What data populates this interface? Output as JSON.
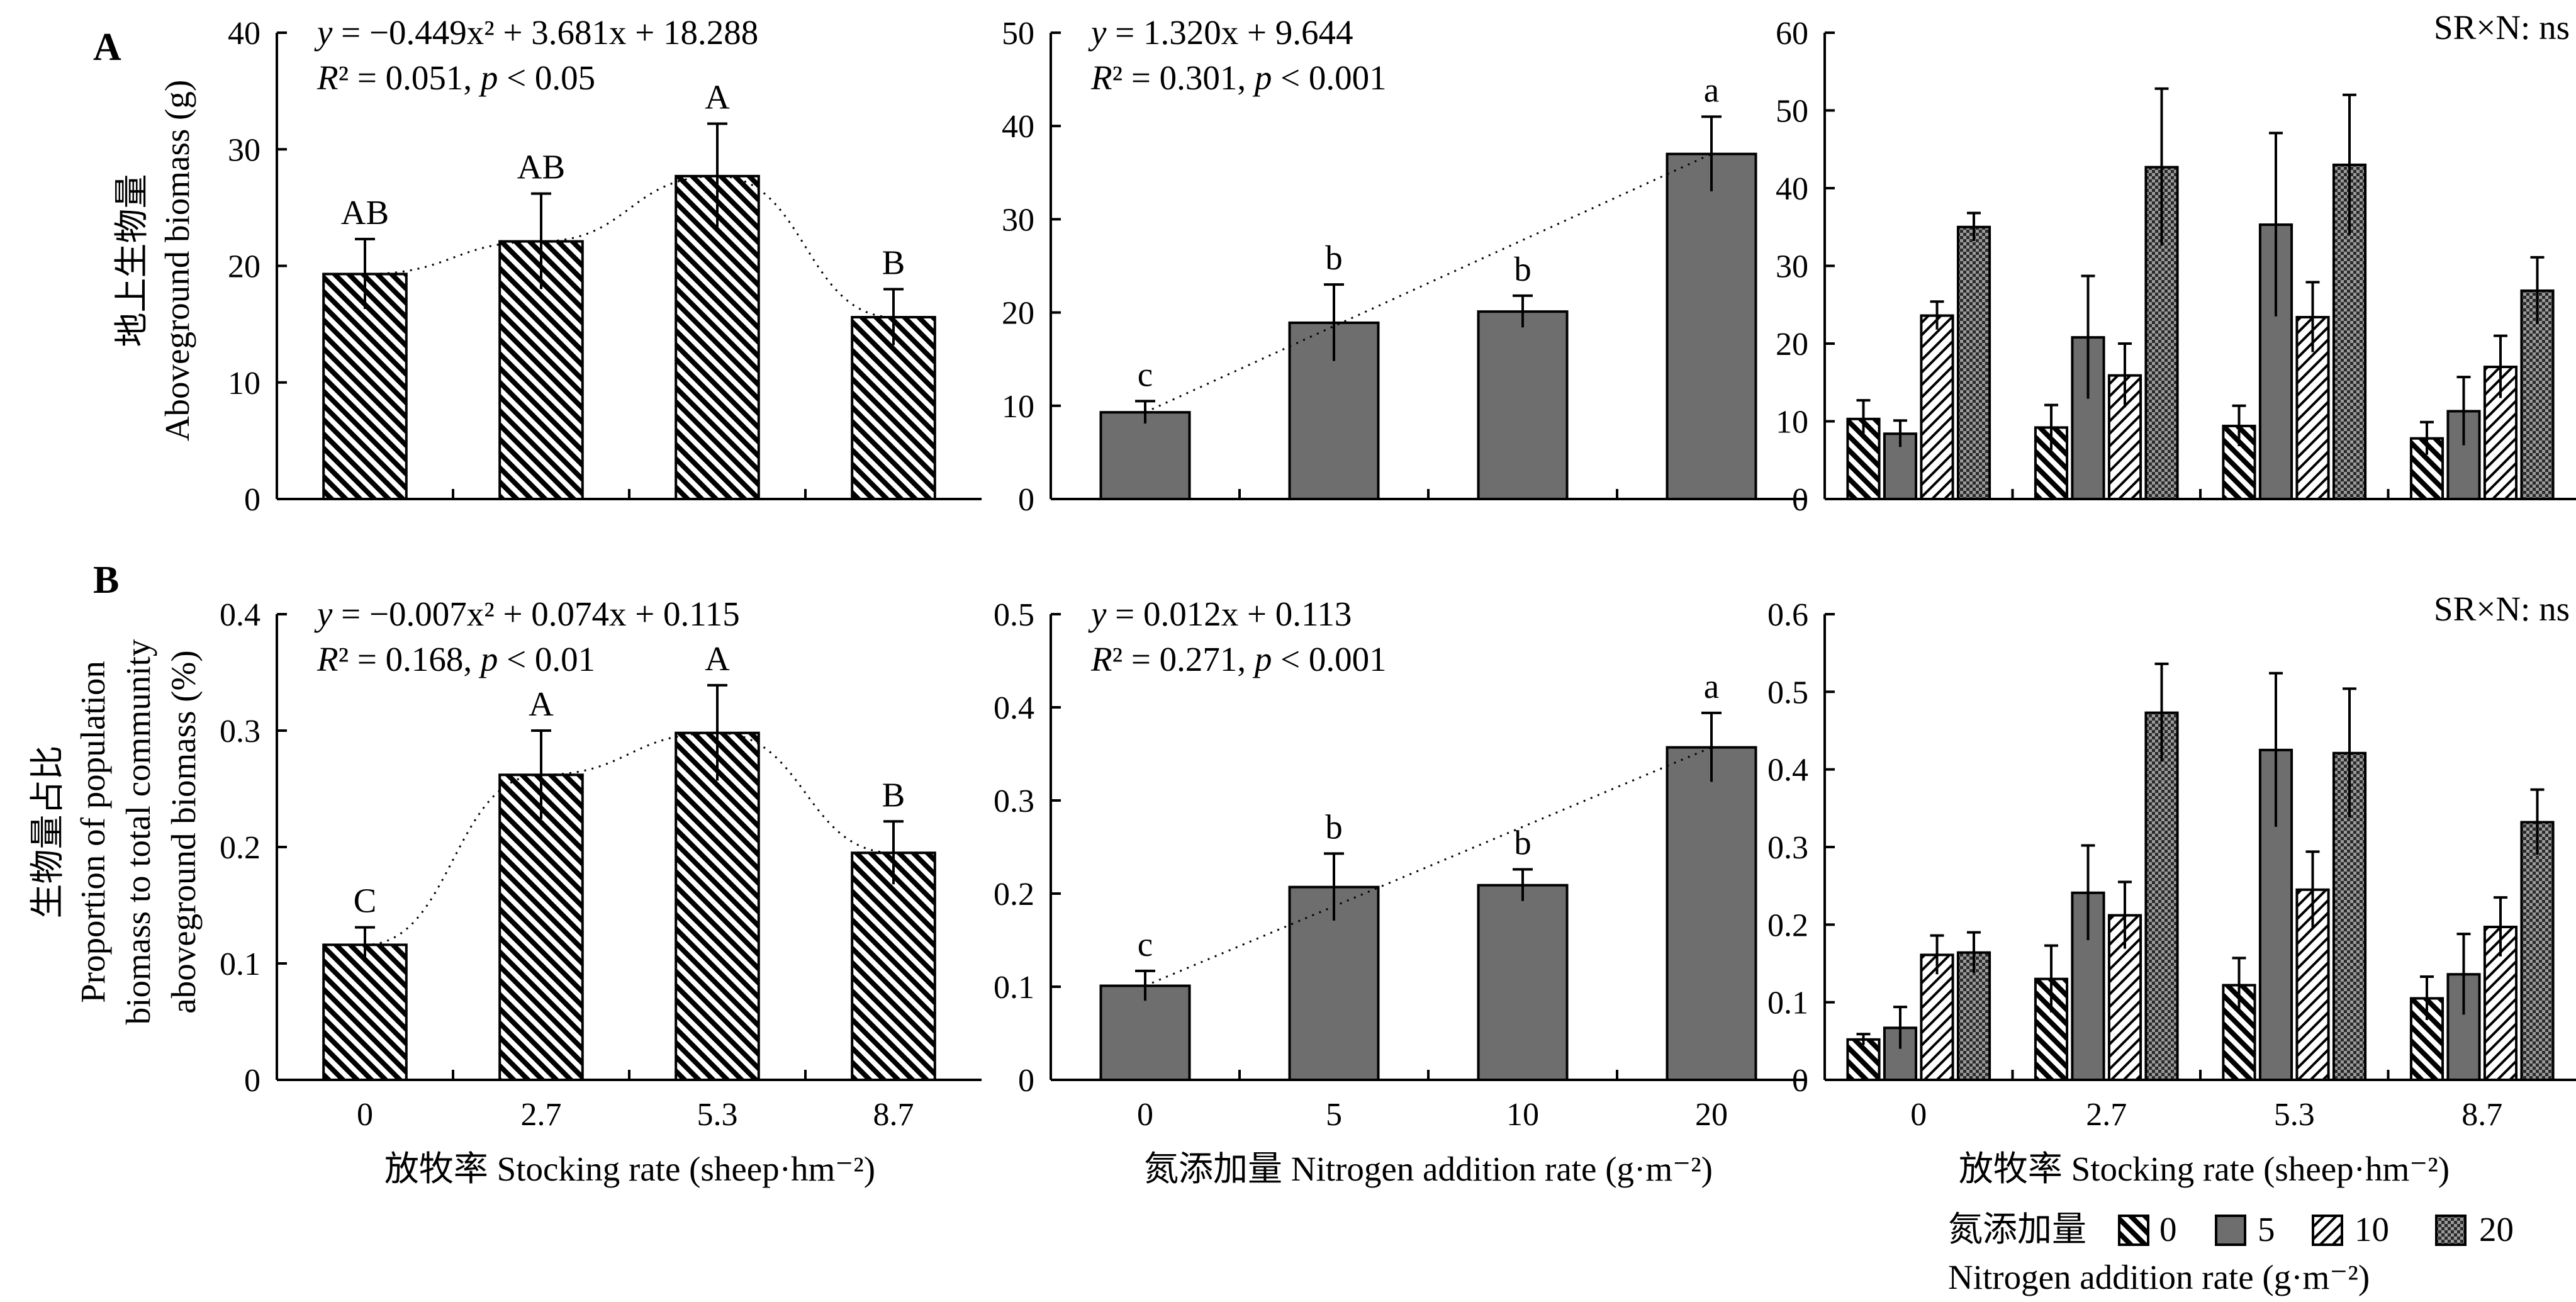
{
  "colors": {
    "nitrogen_solid": "#6e6e6e",
    "axis": "#000000"
  },
  "panels": {
    "A": "A",
    "B": "B"
  },
  "labels": {
    "ylabel_A_cn": "地上生物量",
    "ylabel_A_en": "Aboveground  biomass (g)",
    "ylabel_B_cn": "生物量占比",
    "ylabel_B_en1": "Proportion of population",
    "ylabel_B_en2": "biomass to total community",
    "ylabel_B_en3": "aboveground biomass (%)",
    "xlabel_left": "放牧率 Stocking rate (sheep·hm⁻²)",
    "xlabel_mid": "氮添加量 Nitrogen addition rate (g·m⁻²)",
    "xlabel_right": "放牧率 Stocking rate (sheep·hm⁻²)",
    "legend_title_cn": "氮添加量",
    "legend_title_en": "Nitrogen addition rate (g·m⁻²)"
  },
  "chart_data": [
    {
      "id": "A-left",
      "type": "bar",
      "categories": [
        "0",
        "2.7",
        "5.3",
        "8.7"
      ],
      "values": [
        19.3,
        22.1,
        27.7,
        15.6
      ],
      "errors": [
        3.0,
        4.1,
        4.5,
        2.4
      ],
      "letters": [
        "AB",
        "AB",
        "A",
        "B"
      ],
      "fill": "hatch",
      "ylim": [
        0,
        40
      ],
      "yticks": [
        "0",
        "10",
        "20",
        "30",
        "40"
      ],
      "equation": "y = −0.449x² + 3.681x + 18.288",
      "stats": "R² = 0.051, p < 0.05",
      "trend": "quadratic"
    },
    {
      "id": "A-mid",
      "type": "bar",
      "categories": [
        "0",
        "5",
        "10",
        "20"
      ],
      "values": [
        9.3,
        18.9,
        20.1,
        37.0
      ],
      "errors": [
        1.2,
        4.1,
        1.7,
        4.0
      ],
      "letters": [
        "c",
        "b",
        "b",
        "a"
      ],
      "fill": "solid",
      "ylim": [
        0,
        50
      ],
      "yticks": [
        "0",
        "10",
        "20",
        "30",
        "40",
        "50"
      ],
      "equation": "y = 1.320x + 9.644",
      "stats": "R² = 0.301, p < 0.001",
      "trend": "linear"
    },
    {
      "id": "A-right",
      "type": "bar",
      "categories": [
        "0",
        "2.7",
        "5.3",
        "8.7"
      ],
      "series": [
        {
          "name": "0",
          "values": [
            10.3,
            9.2,
            9.4,
            7.8
          ],
          "errors": [
            2.4,
            2.9,
            2.6,
            2.1
          ]
        },
        {
          "name": "5",
          "values": [
            8.4,
            20.8,
            35.3,
            11.3
          ],
          "errors": [
            1.7,
            7.9,
            11.8,
            4.4
          ]
        },
        {
          "name": "10",
          "values": [
            23.6,
            15.9,
            23.4,
            17.0
          ],
          "errors": [
            1.8,
            4.1,
            4.5,
            4.0
          ]
        },
        {
          "name": "20",
          "values": [
            35.0,
            42.7,
            43.0,
            26.8
          ],
          "errors": [
            1.8,
            10.1,
            9.0,
            4.3
          ]
        }
      ],
      "annotation": "SR×N: ns",
      "ylim": [
        0,
        60
      ],
      "yticks": [
        "0",
        "10",
        "20",
        "30",
        "40",
        "50",
        "60"
      ]
    },
    {
      "id": "B-left",
      "type": "bar",
      "categories": [
        "0",
        "2.7",
        "5.3",
        "8.7"
      ],
      "values": [
        0.116,
        0.262,
        0.298,
        0.195
      ],
      "errors": [
        0.015,
        0.038,
        0.041,
        0.027
      ],
      "letters": [
        "C",
        "A",
        "A",
        "B"
      ],
      "fill": "hatch",
      "ylim": [
        0,
        0.4
      ],
      "yticks": [
        "0",
        "0.1",
        "0.2",
        "0.3",
        "0.4"
      ],
      "equation": "y = −0.007x² + 0.074x + 0.115",
      "stats": "R² = 0.168, p < 0.01",
      "trend": "quadratic"
    },
    {
      "id": "B-mid",
      "type": "bar",
      "categories": [
        "0",
        "5",
        "10",
        "20"
      ],
      "values": [
        0.101,
        0.207,
        0.209,
        0.357
      ],
      "errors": [
        0.016,
        0.036,
        0.017,
        0.037
      ],
      "letters": [
        "c",
        "b",
        "b",
        "a"
      ],
      "fill": "solid",
      "ylim": [
        0,
        0.5
      ],
      "yticks": [
        "0",
        "0.1",
        "0.2",
        "0.3",
        "0.4",
        "0.5"
      ],
      "equation": "y = 0.012x + 0.113",
      "stats": "R² = 0.271, p < 0.001",
      "trend": "linear"
    },
    {
      "id": "B-right",
      "type": "bar",
      "categories": [
        "0",
        "2.7",
        "5.3",
        "8.7"
      ],
      "series": [
        {
          "name": "0",
          "values": [
            0.052,
            0.13,
            0.122,
            0.105
          ],
          "errors": [
            0.007,
            0.043,
            0.035,
            0.028
          ]
        },
        {
          "name": "5",
          "values": [
            0.067,
            0.241,
            0.425,
            0.136
          ],
          "errors": [
            0.027,
            0.061,
            0.099,
            0.052
          ]
        },
        {
          "name": "10",
          "values": [
            0.161,
            0.212,
            0.245,
            0.197
          ],
          "errors": [
            0.025,
            0.043,
            0.049,
            0.038
          ]
        },
        {
          "name": "20",
          "values": [
            0.164,
            0.473,
            0.421,
            0.332
          ],
          "errors": [
            0.026,
            0.063,
            0.083,
            0.042
          ]
        }
      ],
      "annotation": "SR×N: ns",
      "ylim": [
        0,
        0.6
      ],
      "yticks": [
        "0",
        "0.1",
        "0.2",
        "0.3",
        "0.4",
        "0.5",
        "0.6"
      ]
    }
  ]
}
